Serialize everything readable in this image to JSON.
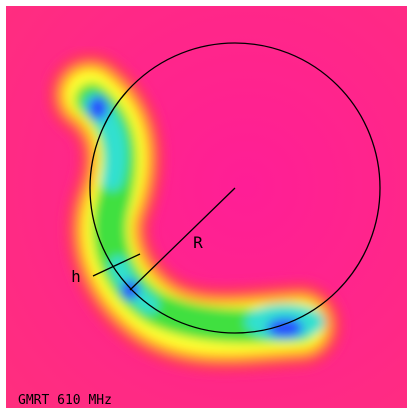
{
  "labels": {
    "radius": "R",
    "height": "h",
    "caption": "GMRT 610 MHz"
  }
}
